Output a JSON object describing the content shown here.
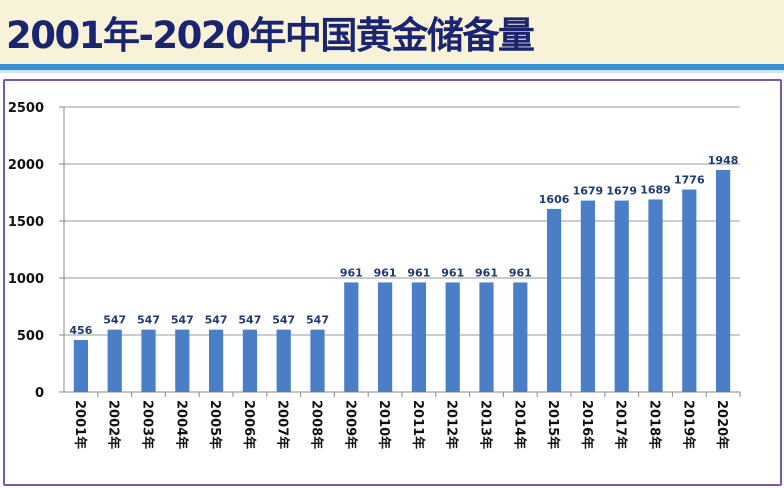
{
  "header": {
    "title": "2001年-2020年中国黄金储备量"
  },
  "chart_data": {
    "type": "bar",
    "title": "2001年-2020年中国黄金储备量",
    "xlabel": "",
    "ylabel": "",
    "categories": [
      "2001年",
      "2002年",
      "2003年",
      "2004年",
      "2005年",
      "2006年",
      "2007年",
      "2008年",
      "2009年",
      "2010年",
      "2011年",
      "2012年",
      "2013年",
      "2014年",
      "2015年",
      "2016年",
      "2017年",
      "2018年",
      "2019年",
      "2020年"
    ],
    "values": [
      456,
      547,
      547,
      547,
      547,
      547,
      547,
      547,
      961,
      961,
      961,
      961,
      961,
      961,
      1606,
      1679,
      1679,
      1689,
      1776,
      1948
    ],
    "ylim": [
      0,
      2500
    ],
    "yticks": [
      0,
      500,
      1000,
      1500,
      2000,
      2500
    ],
    "grid": true,
    "legend": "none",
    "bar_color": "#4a7fc8",
    "data_labels": true
  }
}
